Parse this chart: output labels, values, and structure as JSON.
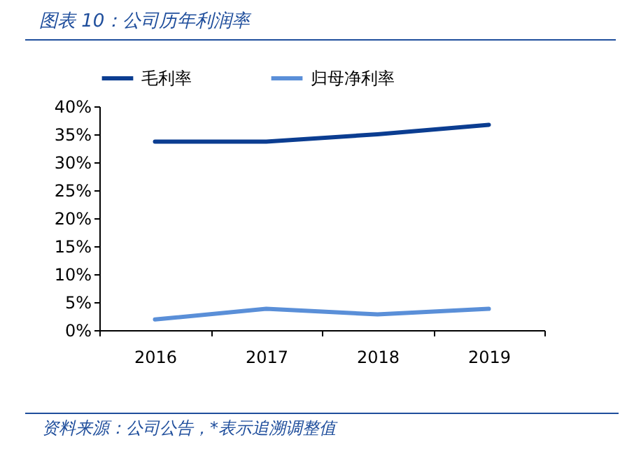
{
  "chart_data": {
    "type": "line",
    "title": "图表 10：公司历年利润率",
    "categories": [
      "2016",
      "2017",
      "2018",
      "2019"
    ],
    "series": [
      {
        "name": "毛利率",
        "color": "#0b3d91",
        "values": [
          33.7,
          33.7,
          35.0,
          36.7
        ]
      },
      {
        "name": "归母净利率",
        "color": "#5a8fd8",
        "values": [
          1.9,
          3.8,
          2.8,
          3.8
        ]
      }
    ],
    "ylim": [
      0,
      40
    ],
    "yticks": [
      {
        "value": 0,
        "label": "0%"
      },
      {
        "value": 5,
        "label": "5%"
      },
      {
        "value": 10,
        "label": "10%"
      },
      {
        "value": 15,
        "label": "15%"
      },
      {
        "value": 20,
        "label": "20%"
      },
      {
        "value": 25,
        "label": "25%"
      },
      {
        "value": 30,
        "label": "30%"
      },
      {
        "value": 35,
        "label": "35%"
      },
      {
        "value": 40,
        "label": "40%"
      }
    ],
    "grid": false,
    "legend": "top",
    "annotations": [
      "资料来源：公司公告，*表示追溯调整值"
    ]
  }
}
